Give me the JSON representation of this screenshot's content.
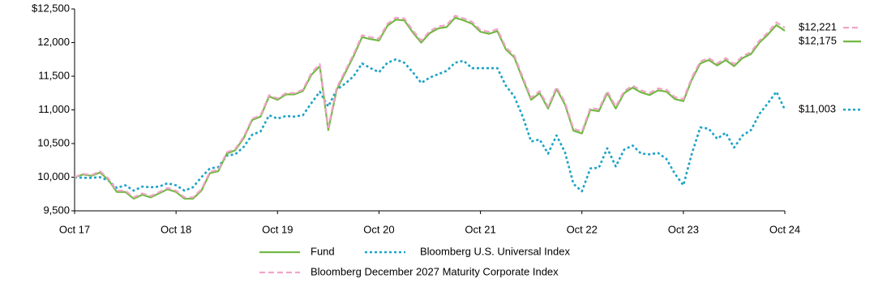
{
  "chart_data": {
    "type": "line",
    "categories": [
      "Oct 17",
      null,
      null,
      null,
      null,
      null,
      null,
      null,
      null,
      null,
      null,
      null,
      "Oct 18",
      null,
      null,
      null,
      null,
      null,
      null,
      null,
      null,
      null,
      null,
      null,
      "Oct 19",
      null,
      null,
      null,
      null,
      null,
      null,
      null,
      null,
      null,
      null,
      null,
      "Oct 20",
      null,
      null,
      null,
      null,
      null,
      null,
      null,
      null,
      null,
      null,
      null,
      "Oct 21",
      null,
      null,
      null,
      null,
      null,
      null,
      null,
      null,
      null,
      null,
      null,
      "Oct 22",
      null,
      null,
      null,
      null,
      null,
      null,
      null,
      null,
      null,
      null,
      null,
      "Oct 23",
      null,
      null,
      null,
      null,
      null,
      null,
      null,
      null,
      null,
      null,
      null,
      "Oct 24"
    ],
    "series": [
      {
        "name": "Bloomberg U.S. Universal Index",
        "color": "#1ba3c6",
        "style": "dotted",
        "values": [
          10000,
          9990,
          9990,
          10000,
          9950,
          9840,
          9880,
          9800,
          9860,
          9850,
          9860,
          9910,
          9880,
          9800,
          9850,
          10000,
          10130,
          10150,
          10320,
          10340,
          10450,
          10630,
          10680,
          10920,
          10870,
          10910,
          10900,
          10920,
          11100,
          11270,
          11050,
          11300,
          11390,
          11500,
          11690,
          11620,
          11560,
          11700,
          11750,
          11700,
          11560,
          11400,
          11480,
          11530,
          11580,
          11700,
          11730,
          11620,
          11620,
          11620,
          11620,
          11360,
          11200,
          10900,
          10530,
          10560,
          10350,
          10620,
          10370,
          9900,
          9790,
          10130,
          10140,
          10430,
          10160,
          10410,
          10470,
          10350,
          10340,
          10360,
          10270,
          10050,
          9880,
          10350,
          10740,
          10720,
          10570,
          10660,
          10440,
          10620,
          10700,
          10940,
          11100,
          11270,
          11003
        ],
        "value_labels": [
          null,
          null,
          null,
          null,
          null,
          null,
          null,
          null,
          null,
          null,
          null,
          null,
          null,
          null,
          null,
          null,
          null,
          null,
          null,
          null,
          null,
          null,
          null,
          null,
          null,
          null,
          null,
          null,
          null,
          null,
          null,
          null,
          null,
          null,
          null,
          null,
          null,
          null,
          null,
          null,
          null,
          null,
          null,
          null,
          null,
          null,
          null,
          null,
          null,
          null,
          null,
          null,
          null,
          null,
          null,
          null,
          null,
          null,
          null,
          null,
          null,
          null,
          null,
          null,
          null,
          null,
          null,
          null,
          null,
          null,
          null,
          null,
          null,
          null,
          null,
          null,
          null,
          null,
          null,
          null,
          null,
          null,
          null,
          null,
          "$11,003"
        ]
      },
      {
        "name": "Fund",
        "color": "#72b843",
        "style": "solid",
        "values": [
          10000,
          10040,
          10020,
          10070,
          9960,
          9780,
          9780,
          9680,
          9740,
          9700,
          9760,
          9820,
          9780,
          9680,
          9680,
          9800,
          10060,
          10090,
          10350,
          10400,
          10580,
          10850,
          10900,
          11200,
          11150,
          11230,
          11230,
          11280,
          11520,
          11650,
          10700,
          11300,
          11550,
          11800,
          12080,
          12050,
          12030,
          12250,
          12340,
          12330,
          12150,
          12000,
          12140,
          12210,
          12230,
          12370,
          12330,
          12280,
          12160,
          12130,
          12170,
          11900,
          11780,
          11460,
          11150,
          11250,
          11020,
          11310,
          11080,
          10690,
          10650,
          11000,
          10980,
          11250,
          11020,
          11250,
          11330,
          11260,
          11220,
          11290,
          11270,
          11160,
          11130,
          11450,
          11690,
          11740,
          11660,
          11740,
          11650,
          11770,
          11830,
          12000,
          12120,
          12260,
          12175
        ],
        "value_labels": [
          null,
          null,
          null,
          null,
          null,
          null,
          null,
          null,
          null,
          null,
          null,
          null,
          null,
          null,
          null,
          null,
          null,
          null,
          null,
          null,
          null,
          null,
          null,
          null,
          null,
          null,
          null,
          null,
          null,
          null,
          null,
          null,
          null,
          null,
          null,
          null,
          null,
          null,
          null,
          null,
          null,
          null,
          null,
          null,
          null,
          null,
          null,
          null,
          null,
          null,
          null,
          null,
          null,
          null,
          null,
          null,
          null,
          null,
          null,
          null,
          null,
          null,
          null,
          null,
          null,
          null,
          null,
          null,
          null,
          null,
          null,
          null,
          null,
          null,
          null,
          null,
          null,
          null,
          null,
          null,
          null,
          null,
          null,
          null,
          "$12,175"
        ]
      },
      {
        "name": "Bloomberg December 2027 Maturity Corporate Index",
        "color": "#f2a3c7",
        "style": "dashed",
        "values": [
          10000,
          10050,
          10030,
          10090,
          9980,
          9800,
          9800,
          9700,
          9760,
          9720,
          9780,
          9840,
          9800,
          9700,
          9700,
          9820,
          10080,
          10110,
          10370,
          10420,
          10600,
          10870,
          10920,
          11220,
          11170,
          11250,
          11250,
          11300,
          11550,
          11680,
          10740,
          11330,
          11580,
          11830,
          12110,
          12080,
          12060,
          12280,
          12370,
          12360,
          12180,
          12030,
          12170,
          12240,
          12260,
          12400,
          12360,
          12310,
          12190,
          12160,
          12200,
          11930,
          11810,
          11490,
          11180,
          11280,
          11050,
          11340,
          11110,
          10720,
          10680,
          11030,
          11010,
          11280,
          11050,
          11280,
          11360,
          11290,
          11250,
          11320,
          11300,
          11190,
          11160,
          11480,
          11720,
          11770,
          11690,
          11770,
          11680,
          11800,
          11860,
          12030,
          12150,
          12300,
          12221
        ],
        "value_labels": [
          null,
          null,
          null,
          null,
          null,
          null,
          null,
          null,
          null,
          null,
          null,
          null,
          null,
          null,
          null,
          null,
          null,
          null,
          null,
          null,
          null,
          null,
          null,
          null,
          null,
          null,
          null,
          null,
          null,
          null,
          null,
          null,
          null,
          null,
          null,
          null,
          null,
          null,
          null,
          null,
          null,
          null,
          null,
          null,
          null,
          null,
          null,
          null,
          null,
          null,
          null,
          null,
          null,
          null,
          null,
          null,
          null,
          null,
          null,
          null,
          null,
          null,
          null,
          null,
          null,
          null,
          null,
          null,
          null,
          null,
          null,
          null,
          null,
          null,
          null,
          null,
          null,
          null,
          null,
          null,
          null,
          null,
          null,
          null,
          "$12,221"
        ]
      }
    ],
    "legend_order": [
      1,
      0,
      2
    ],
    "ylim": [
      9500,
      12500
    ],
    "yticks": [
      {
        "value": 9500,
        "label": "9,500"
      },
      {
        "value": 10000,
        "label": "10,000"
      },
      {
        "value": 10500,
        "label": "10,500"
      },
      {
        "value": 11000,
        "label": "11,000"
      },
      {
        "value": 11500,
        "label": "11,500"
      },
      {
        "value": 12000,
        "label": "12,000"
      },
      {
        "value": 12500,
        "label": "$12,500"
      }
    ],
    "grid": false
  }
}
